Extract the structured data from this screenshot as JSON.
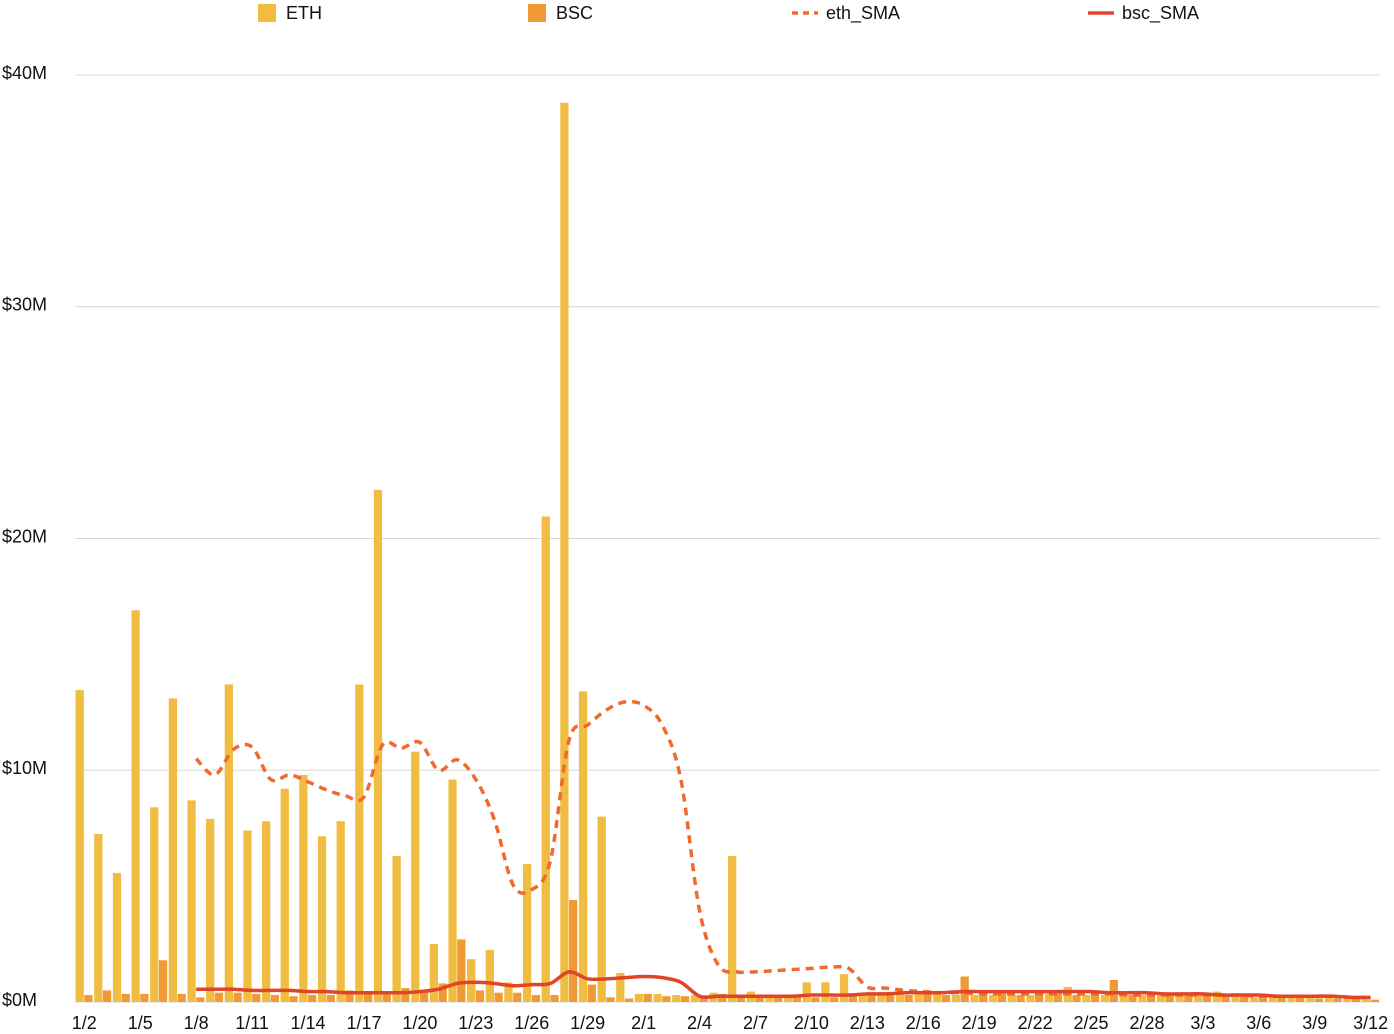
{
  "chart_data": {
    "type": "bar",
    "categories": [
      "1/2",
      null,
      null,
      "1/5",
      null,
      null,
      "1/8",
      null,
      null,
      "1/11",
      null,
      null,
      "1/14",
      null,
      null,
      "1/17",
      null,
      null,
      "1/20",
      null,
      null,
      "1/23",
      null,
      null,
      "1/26",
      null,
      null,
      "1/29",
      null,
      null,
      "2/1",
      null,
      null,
      "2/4",
      null,
      null,
      "2/7",
      null,
      null,
      "2/10",
      null,
      null,
      "2/13",
      null,
      null,
      "2/16",
      null,
      null,
      "2/19",
      null,
      null,
      "2/22",
      null,
      null,
      "2/25",
      null,
      null,
      "2/28",
      null,
      null,
      "3/3",
      null,
      null,
      "3/6",
      null,
      null,
      "3/9",
      null,
      null,
      "3/12"
    ],
    "series": [
      {
        "name": "ETH",
        "kind": "bar",
        "color": "#f0bd42",
        "values": [
          13.46,
          7.25,
          5.57,
          16.9,
          8.4,
          13.1,
          8.7,
          7.9,
          13.7,
          7.4,
          7.8,
          9.2,
          9.8,
          7.15,
          7.8,
          13.7,
          22.1,
          6.3,
          10.8,
          2.5,
          9.6,
          1.85,
          2.25,
          0.85,
          5.95,
          20.95,
          38.8,
          13.4,
          8,
          1.25,
          0.35,
          0.35,
          0.3,
          0.3,
          0.4,
          6.3,
          0.45,
          0.3,
          0.25,
          0.85,
          0.85,
          1.2,
          0.35,
          0.35,
          0.35,
          0.4,
          0.35,
          0.3,
          0.3,
          0.3,
          0.3,
          0.3,
          0.35,
          0.65,
          0.3,
          0.3,
          0.35,
          0.3,
          0.3,
          0.35,
          0.3,
          0.45,
          0.25,
          0.2,
          0.25,
          0.2,
          0.2,
          0.2,
          0.15,
          0.15
        ]
      },
      {
        "name": "BSC",
        "kind": "bar",
        "color": "#ef9a35",
        "values": [
          0.3,
          0.5,
          0.35,
          0.35,
          1.8,
          0.35,
          0.2,
          0.4,
          0.4,
          0.35,
          0.3,
          0.25,
          0.3,
          0.3,
          0.5,
          0.4,
          0.4,
          0.6,
          0.5,
          0.8,
          2.7,
          0.5,
          0.4,
          0.4,
          0.3,
          0.3,
          4.4,
          0.75,
          0.2,
          0.15,
          0.35,
          0.25,
          0.25,
          0.2,
          0.35,
          0.2,
          0.3,
          0.25,
          0.2,
          0.2,
          0.2,
          0.35,
          0.3,
          0.3,
          0.3,
          0.35,
          0.3,
          1.1,
          0.4,
          0.4,
          0.3,
          0.35,
          0.4,
          0.3,
          0.3,
          0.95,
          0.3,
          0.35,
          0.3,
          0.3,
          0.3,
          0.3,
          0.25,
          0.2,
          0.2,
          0.2,
          0.15,
          0.15,
          0.15,
          0.1
        ]
      },
      {
        "name": "eth_SMA",
        "kind": "line",
        "dashed": true,
        "color": "#f06a30",
        "values": [
          null,
          null,
          null,
          null,
          null,
          null,
          10.5,
          9.8,
          10.9,
          11.0,
          9.6,
          9.8,
          9.5,
          9.15,
          8.9,
          8.85,
          11.1,
          10.95,
          11.2,
          10.0,
          10.45,
          9.6,
          7.85,
          5.05,
          4.85,
          6.1,
          11.3,
          11.95,
          12.6,
          12.95,
          12.8,
          11.95,
          9.6,
          3.95,
          1.6,
          1.3,
          1.3,
          1.35,
          1.4,
          1.45,
          1.5,
          1.45,
          0.65,
          0.6,
          0.5,
          0.45,
          0.4,
          0.4,
          0.35,
          0.35,
          0.35,
          0.35,
          0.35,
          0.35,
          0.35,
          0.35,
          0.3,
          0.3,
          0.3,
          0.3,
          0.3,
          0.3,
          0.3,
          0.25,
          0.25,
          0.25,
          0.25,
          0.25,
          0.2,
          0.2
        ]
      },
      {
        "name": "bsc_SMA",
        "kind": "line",
        "dashed": false,
        "color": "#e04527",
        "values": [
          null,
          null,
          null,
          null,
          null,
          null,
          0.55,
          0.55,
          0.55,
          0.5,
          0.5,
          0.5,
          0.45,
          0.45,
          0.4,
          0.4,
          0.4,
          0.4,
          0.45,
          0.55,
          0.8,
          0.85,
          0.8,
          0.7,
          0.75,
          0.8,
          1.3,
          1.0,
          1.0,
          1.05,
          1.1,
          1.05,
          0.85,
          0.25,
          0.25,
          0.25,
          0.25,
          0.25,
          0.25,
          0.3,
          0.3,
          0.3,
          0.35,
          0.35,
          0.4,
          0.4,
          0.4,
          0.45,
          0.45,
          0.45,
          0.45,
          0.45,
          0.45,
          0.45,
          0.45,
          0.4,
          0.4,
          0.4,
          0.35,
          0.35,
          0.35,
          0.3,
          0.3,
          0.3,
          0.25,
          0.25,
          0.25,
          0.25,
          0.2,
          0.2
        ]
      }
    ],
    "ylim": [
      0,
      40
    ],
    "yticks": [
      {
        "value": 0,
        "label": "$0M"
      },
      {
        "value": 10,
        "label": "$10M"
      },
      {
        "value": 20,
        "label": "$20M"
      },
      {
        "value": 30,
        "label": "$30M"
      },
      {
        "value": 40,
        "label": "$40M"
      }
    ],
    "grid": true,
    "legend": "top"
  }
}
